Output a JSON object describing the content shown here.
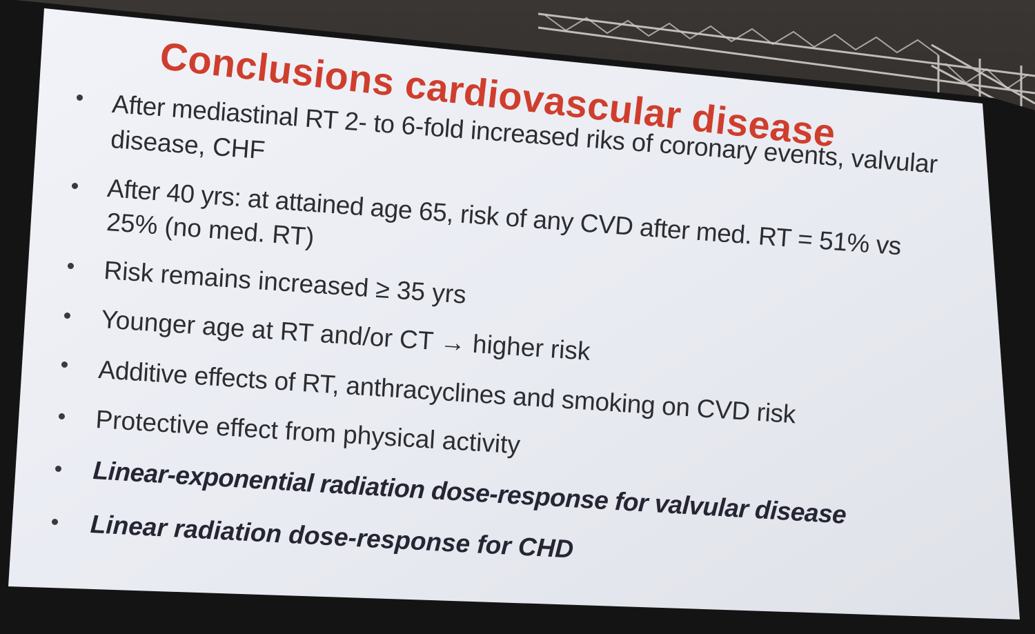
{
  "slide": {
    "title": "Conclusions cardiovascular disease",
    "bullets": [
      {
        "line1": "After mediastinal RT 2- to 6-fold increased riks of coronary events, valvular",
        "line2": "disease, CHF",
        "emphasis": false
      },
      {
        "line1": "After 40 yrs: at attained age 65, risk of any CVD after med. RT = 51% vs",
        "line2": "25% (no med. RT)",
        "emphasis": false
      },
      {
        "line1": "Risk remains increased ≥ 35 yrs",
        "line2": "",
        "emphasis": false
      },
      {
        "line1": "Younger age at RT and/or CT → higher risk",
        "line2": "",
        "emphasis": false
      },
      {
        "line1": "Additive effects of RT, anthracyclines and smoking on CVD risk",
        "line2": "",
        "emphasis": false
      },
      {
        "line1": "Protective effect from physical activity",
        "line2": "",
        "emphasis": false
      },
      {
        "line1": "Linear-exponential radiation dose-response for valvular disease",
        "line2": "",
        "emphasis": true
      },
      {
        "line1": "Linear radiation dose-response for CHD",
        "line2": "",
        "emphasis": true
      }
    ]
  },
  "colors": {
    "title": "#cf3e2d",
    "body_text": "#2d2c2f",
    "slide_background": "#eef0f6",
    "frame": "#121212"
  }
}
